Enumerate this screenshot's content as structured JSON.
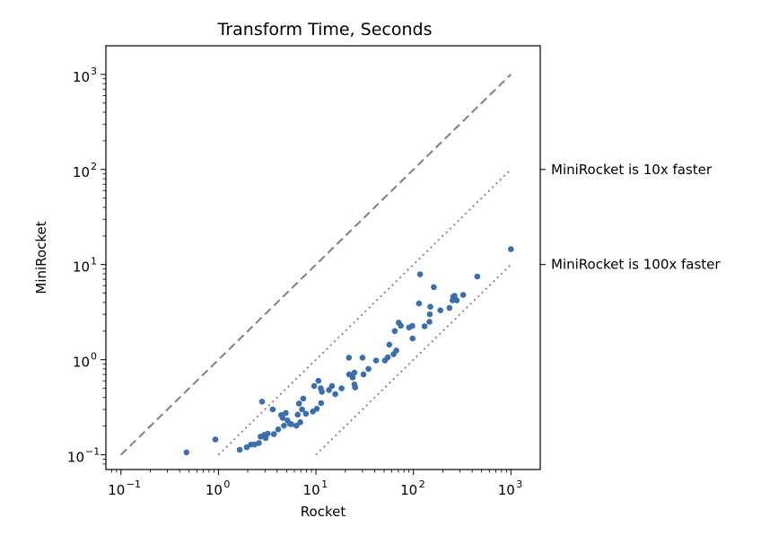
{
  "chart_data": {
    "type": "scatter",
    "title": "Transform Time, Seconds",
    "xlabel": "Rocket",
    "ylabel": "MiniRocket",
    "xscale": "log",
    "yscale": "log",
    "xlim": [
      0.07,
      2000
    ],
    "ylim": [
      0.07,
      2000
    ],
    "grid": false,
    "colors": {
      "points": "#3a6fad",
      "reference": "#808080",
      "axis": "#000000"
    },
    "xticks": [
      {
        "base": "10",
        "exp": "−1",
        "value": 0.1
      },
      {
        "base": "10",
        "exp": "0",
        "value": 1
      },
      {
        "base": "10",
        "exp": "1",
        "value": 10
      },
      {
        "base": "10",
        "exp": "2",
        "value": 100
      },
      {
        "base": "10",
        "exp": "3",
        "value": 1000
      }
    ],
    "yticks": [
      {
        "base": "10",
        "exp": "−1",
        "value": 0.1
      },
      {
        "base": "10",
        "exp": "0",
        "value": 1
      },
      {
        "base": "10",
        "exp": "1",
        "value": 10
      },
      {
        "base": "10",
        "exp": "2",
        "value": 100
      },
      {
        "base": "10",
        "exp": "3",
        "value": 1000
      }
    ],
    "reference_lines": [
      {
        "style": "dashed",
        "x": [
          0.1,
          1000
        ],
        "y": [
          0.1,
          1000
        ]
      },
      {
        "style": "dotted",
        "x": [
          1,
          1000
        ],
        "y": [
          0.1,
          100
        ]
      },
      {
        "style": "dotted",
        "x": [
          10,
          1000
        ],
        "y": [
          0.1,
          10
        ]
      }
    ],
    "annotations": [
      {
        "text": "MiniRocket is 10x faster",
        "at_y": 100
      },
      {
        "text": "MiniRocket is 100x faster",
        "at_y": 10
      }
    ],
    "points": [
      [
        0.47,
        0.106
      ],
      [
        0.93,
        0.145
      ],
      [
        1.65,
        0.113
      ],
      [
        1.95,
        0.12
      ],
      [
        2.15,
        0.128
      ],
      [
        2.35,
        0.128
      ],
      [
        2.6,
        0.133
      ],
      [
        2.7,
        0.155
      ],
      [
        2.8,
        0.362
      ],
      [
        2.95,
        0.162
      ],
      [
        3.05,
        0.15
      ],
      [
        3.2,
        0.167
      ],
      [
        3.6,
        0.3
      ],
      [
        3.7,
        0.165
      ],
      [
        4.1,
        0.185
      ],
      [
        4.4,
        0.262
      ],
      [
        4.55,
        0.245
      ],
      [
        4.7,
        0.202
      ],
      [
        4.9,
        0.275
      ],
      [
        5.1,
        0.23
      ],
      [
        5.4,
        0.212
      ],
      [
        5.6,
        0.21
      ],
      [
        6.3,
        0.202
      ],
      [
        6.5,
        0.265
      ],
      [
        6.7,
        0.345
      ],
      [
        6.9,
        0.22
      ],
      [
        7.2,
        0.3
      ],
      [
        7.4,
        0.39
      ],
      [
        7.9,
        0.27
      ],
      [
        9.3,
        0.285
      ],
      [
        9.6,
        0.53
      ],
      [
        10.2,
        0.305
      ],
      [
        10.6,
        0.6
      ],
      [
        11.2,
        0.5
      ],
      [
        11.5,
        0.46
      ],
      [
        11.3,
        0.35
      ],
      [
        13.6,
        0.48
      ],
      [
        14.6,
        0.53
      ],
      [
        15.8,
        0.435
      ],
      [
        18.3,
        0.5
      ],
      [
        21.8,
        1.05
      ],
      [
        21.9,
        0.7
      ],
      [
        23.8,
        0.65
      ],
      [
        24.8,
        0.73
      ],
      [
        24.8,
        0.55
      ],
      [
        25.2,
        0.51
      ],
      [
        30.0,
        1.05
      ],
      [
        30.7,
        0.7
      ],
      [
        34.6,
        0.8
      ],
      [
        41.4,
        0.98
      ],
      [
        51.0,
        0.98
      ],
      [
        54.6,
        1.06
      ],
      [
        56.6,
        1.44
      ],
      [
        62.6,
        1.14
      ],
      [
        64.4,
        2.0
      ],
      [
        66.7,
        1.25
      ],
      [
        70.7,
        2.45
      ],
      [
        74.2,
        2.28
      ],
      [
        90.1,
        2.18
      ],
      [
        97.3,
        2.27
      ],
      [
        98.0,
        1.67
      ],
      [
        114,
        3.9
      ],
      [
        117,
        7.9
      ],
      [
        130,
        2.25
      ],
      [
        146,
        2.5
      ],
      [
        147,
        3.0
      ],
      [
        149,
        3.6
      ],
      [
        162,
        5.8
      ],
      [
        189,
        3.3
      ],
      [
        234,
        3.5
      ],
      [
        252,
        4.2
      ],
      [
        256,
        4.6
      ],
      [
        264,
        4.7
      ],
      [
        278,
        4.2
      ],
      [
        324,
        4.8
      ],
      [
        452,
        7.5
      ],
      [
        1000,
        14.5
      ]
    ]
  }
}
